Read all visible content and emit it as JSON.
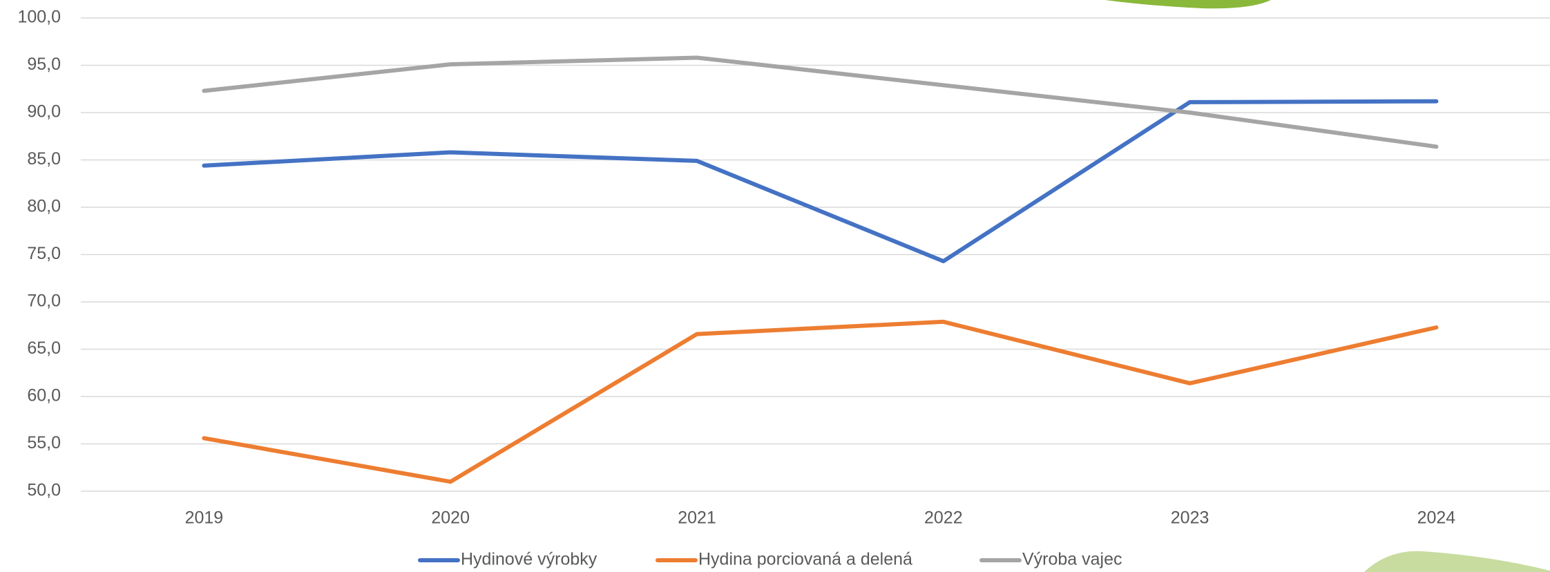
{
  "chart_data": {
    "type": "line",
    "categories": [
      "2019",
      "2020",
      "2021",
      "2022",
      "2023",
      "2024"
    ],
    "series": [
      {
        "name": "Hydinové výrobky",
        "color": "#4472c4",
        "values": [
          84.4,
          85.8,
          84.9,
          74.3,
          91.1,
          91.2
        ]
      },
      {
        "name": "Hydina porciovaná a delená",
        "color": "#ed7d31",
        "values": [
          55.6,
          51.0,
          66.6,
          67.9,
          61.4,
          67.3
        ]
      },
      {
        "name": "Výroba vajec",
        "color": "#a5a5a5",
        "values": [
          92.3,
          95.1,
          95.8,
          92.9,
          90.0,
          86.4
        ]
      }
    ],
    "ylim": [
      50,
      100
    ],
    "yticks": [
      {
        "value": 50,
        "label": "50,0"
      },
      {
        "value": 55,
        "label": "55,0"
      },
      {
        "value": 60,
        "label": "60,0"
      },
      {
        "value": 65,
        "label": "65,0"
      },
      {
        "value": 70,
        "label": "70,0"
      },
      {
        "value": 75,
        "label": "75,0"
      },
      {
        "value": 80,
        "label": "80,0"
      },
      {
        "value": 85,
        "label": "85,0"
      },
      {
        "value": 90,
        "label": "90,0"
      },
      {
        "value": 95,
        "label": "95,0"
      },
      {
        "value": 100,
        "label": "100,0"
      }
    ],
    "grid": true,
    "legend": "bottom"
  }
}
